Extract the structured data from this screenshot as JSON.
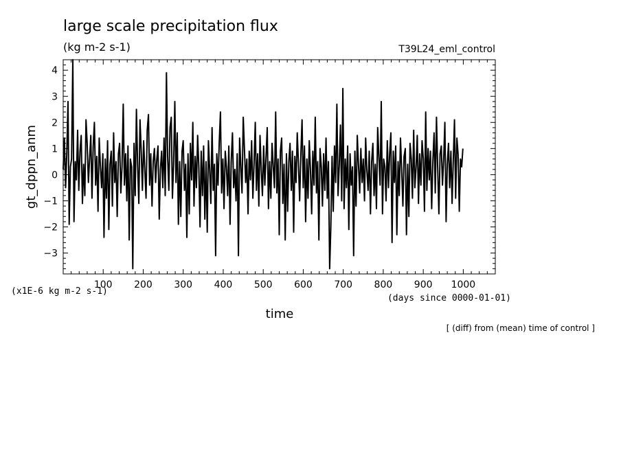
{
  "chart_data": {
    "type": "line",
    "title": "large scale precipitation flux",
    "subtitle": "(kg m-2 s-1)",
    "run_label": "T39L24_eml_control",
    "xlabel": "time",
    "x_units": "(days since 0000-01-01)",
    "ylabel": "gt_dppn_anm",
    "y_units": "(x1E-6 kg m-2 s-1)",
    "footnote": "[ (diff) from (mean) time of control ]",
    "xlim": [
      0,
      1080
    ],
    "ylim": [
      -3.8,
      4.4
    ],
    "x_ticks": [
      100,
      200,
      300,
      400,
      500,
      600,
      700,
      800,
      900,
      1000
    ],
    "y_ticks": [
      -3,
      -2,
      -1,
      0,
      1,
      2,
      3,
      4
    ],
    "grid": false,
    "series": [
      {
        "name": "",
        "x_start": 0,
        "x_step": 3,
        "values": [
          0.2,
          1.4,
          -0.5,
          0.8,
          2.8,
          -1.9,
          0.3,
          0.6,
          4.4,
          -1.8,
          0.5,
          -0.2,
          1.7,
          -0.6,
          0.9,
          1.5,
          -1.1,
          0.4,
          -0.8,
          2.1,
          1.2,
          -0.3,
          0.6,
          1.5,
          -0.9,
          1.1,
          2.0,
          -0.4,
          0.7,
          -1.4,
          1.4,
          0.3,
          -0.5,
          0.8,
          -2.4,
          0.6,
          -0.9,
          1.3,
          -2.1,
          0.4,
          0.9,
          -1.2,
          1.6,
          -0.3,
          0.5,
          -1.6,
          0.8,
          1.2,
          -0.7,
          0.3,
          2.7,
          -0.4,
          0.8,
          -1.0,
          1.1,
          -2.5,
          0.6,
          0.3,
          -3.6,
          1.2,
          -0.8,
          2.5,
          0.4,
          -1.1,
          2.1,
          0.9,
          -0.6,
          1.3,
          0.2,
          -0.9,
          1.7,
          2.3,
          -0.4,
          0.8,
          -1.2,
          0.5,
          1.0,
          -0.3,
          0.6,
          1.1,
          -1.7,
          0.2,
          0.9,
          -0.5,
          1.4,
          -0.8,
          3.9,
          0.7,
          -0.6,
          1.8,
          2.2,
          -0.9,
          0.4,
          2.8,
          -0.3,
          1.6,
          -1.9,
          0.5,
          -1.6,
          0.9,
          1.3,
          -0.6,
          0.4,
          -2.4,
          0.8,
          -1.5,
          1.2,
          -0.2,
          2.0,
          -1.2,
          0.7,
          -0.5,
          1.5,
          0.3,
          -2.0,
          0.9,
          -0.8,
          1.1,
          -1.7,
          0.5,
          -2.2,
          1.3,
          0.2,
          -1.1,
          1.8,
          -0.6,
          0.4,
          -3.1,
          0.8,
          -0.4,
          1.2,
          2.4,
          -0.7,
          0.6,
          -1.3,
          0.9,
          0.3,
          -0.8,
          1.1,
          -1.9,
          0.5,
          1.6,
          -0.5,
          0.2,
          -1.0,
          0.8,
          -3.1,
          1.4,
          0.3,
          -0.7,
          2.2,
          1.0,
          -0.3,
          0.6,
          -1.5,
          0.9,
          -0.2,
          1.3,
          -0.9,
          0.4,
          2.0,
          -0.6,
          0.8,
          -1.2,
          1.5,
          0.2,
          -0.8,
          1.1,
          -0.4,
          0.7,
          1.8,
          -1.3,
          0.5,
          -0.9,
          1.2,
          0.3,
          -0.5,
          2.4,
          -0.7,
          0.6,
          -2.3,
          0.9,
          1.4,
          -1.1,
          0.4,
          -2.5,
          0.8,
          -1.4,
          0.5,
          1.2,
          -0.6,
          0.9,
          -2.2,
          0.7,
          -0.3,
          1.6,
          0.4,
          -1.0,
          0.8,
          2.1,
          -0.5,
          1.1,
          -1.8,
          0.6,
          -0.9,
          1.3,
          0.2,
          -1.5,
          0.9,
          -0.4,
          2.2,
          -0.7,
          0.5,
          -2.5,
          1.0,
          0.3,
          -1.2,
          0.8,
          -0.6,
          1.4,
          -0.9,
          0.5,
          -3.6,
          -2.0,
          0.7,
          -1.4,
          1.1,
          -0.3,
          2.7,
          -0.8,
          0.4,
          1.9,
          -1.0,
          3.3,
          -1.3,
          0.6,
          -0.5,
          1.1,
          -2.1,
          0.8,
          -0.4,
          0.3,
          -3.1,
          0.9,
          -1.2,
          1.5,
          0.4,
          -0.7,
          1.0,
          -0.3,
          0.6,
          -1.0,
          1.4,
          0.2,
          -0.6,
          0.9,
          -1.5,
          0.5,
          1.2,
          -0.8,
          0.4,
          -1.3,
          1.8,
          0.7,
          -0.4,
          2.8,
          -1.5,
          0.6,
          0.3,
          -1.0,
          1.3,
          -0.5,
          0.8,
          1.6,
          -2.6,
          0.9,
          -0.3,
          1.1,
          -2.3,
          0.5,
          -0.8,
          1.4,
          0.2,
          -1.2,
          0.7,
          1.0,
          -2.3,
          0.4,
          -1.6,
          1.2,
          0.6,
          -0.9,
          1.7,
          -0.5,
          0.3,
          1.5,
          -1.1,
          0.8,
          -0.4,
          1.3,
          0.6,
          -1.4,
          2.4,
          -0.6,
          1.0,
          -0.2,
          0.9,
          -1.3,
          0.5,
          1.6,
          -0.7,
          2.2,
          0.3,
          -1.5,
          0.8,
          1.1,
          -0.4,
          0.6,
          2.0,
          -1.8,
          0.4,
          1.2,
          -0.5,
          0.9,
          -1.1,
          0.5,
          2.1,
          -0.9,
          1.4,
          0.8,
          -1.4,
          0.6,
          0.3,
          1.0
        ]
      }
    ]
  }
}
